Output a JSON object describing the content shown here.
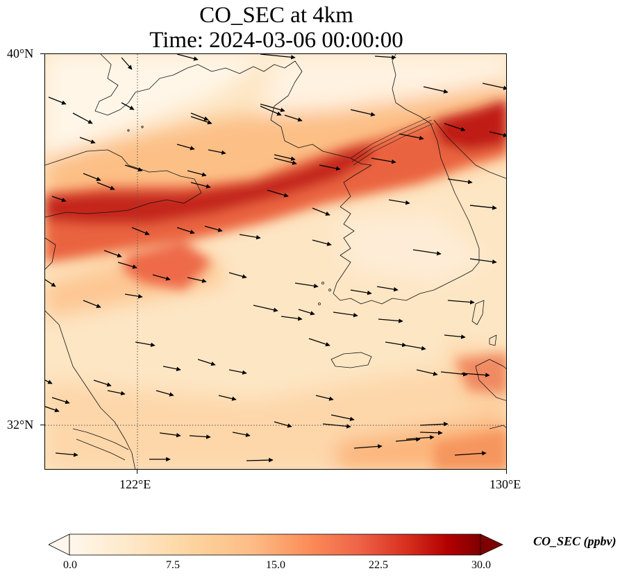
{
  "title": {
    "line1": "CO_SEC at 4km",
    "line2": "Time: 2024-03-06 00:00:00"
  },
  "map": {
    "projection": "PlateCarree",
    "lon_range": [
      119.8,
      130.0
    ],
    "lat_range": [
      31.0,
      40.0
    ],
    "gridlines": {
      "style": "dotted",
      "lons": [
        122,
        130
      ],
      "lats": [
        32,
        40
      ]
    },
    "lon_ticks": [
      "122°E",
      "130°E"
    ],
    "lat_ticks": [
      "32°N",
      "40°N"
    ],
    "overlays": [
      "coastlines",
      "wind-vectors"
    ],
    "field": "CO_SEC concentration at 4 km, high band extending from the west edge northeast across the Yellow Sea to the northeast corner"
  },
  "colorbar": {
    "label": "CO_SEC (ppbv)",
    "min": 0.0,
    "max": 30.0,
    "ticks": [
      "0.0",
      "7.5",
      "15.0",
      "22.5",
      "30.0"
    ],
    "colormap": "OrRd",
    "extend": "both",
    "colors": {
      "low": "#fff7ec",
      "mid_low": "#fdd49e",
      "mid": "#fc8d59",
      "mid_high": "#d7301f",
      "high": "#7f0000"
    }
  }
}
